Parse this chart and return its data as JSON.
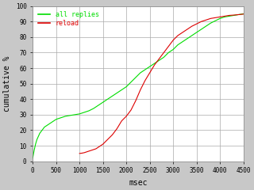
{
  "title": "",
  "xlabel": "msec",
  "ylabel": "cumulative %",
  "xlim": [
    0,
    4500
  ],
  "ylim": [
    0,
    100
  ],
  "xticks": [
    0,
    500,
    1000,
    1500,
    2000,
    2500,
    3000,
    3500,
    4000,
    4500
  ],
  "yticks": [
    0,
    10,
    20,
    30,
    40,
    50,
    60,
    70,
    80,
    90,
    100
  ],
  "fig_bg_color": "#c8c8c8",
  "plot_bg_color": "#ffffff",
  "grid_color": "#aaaaaa",
  "line_color_green": "#00dd00",
  "line_color_red": "#dd0000",
  "legend_labels": [
    "all replies",
    "reload"
  ],
  "legend_colors": [
    "#00dd00",
    "#dd0000"
  ],
  "font_family": "monospace",
  "all_replies_x": [
    0,
    30,
    60,
    90,
    120,
    150,
    200,
    250,
    300,
    350,
    400,
    450,
    500,
    600,
    700,
    800,
    900,
    1000,
    1100,
    1200,
    1300,
    1400,
    1500,
    1600,
    1700,
    1800,
    1900,
    2000,
    2100,
    2200,
    2300,
    2400,
    2500,
    2600,
    2700,
    2800,
    2900,
    3000,
    3100,
    3200,
    3300,
    3400,
    3500,
    3600,
    3700,
    3800,
    3900,
    4000,
    4100,
    4200,
    4300,
    4400,
    4500
  ],
  "all_replies_y": [
    2,
    7,
    11,
    14,
    16,
    18,
    20,
    22,
    23,
    24,
    25,
    26,
    27,
    28,
    29,
    29.5,
    30,
    30.5,
    31.5,
    32.5,
    34,
    36,
    38,
    40,
    42,
    44,
    46,
    48,
    51,
    54,
    57,
    59,
    61,
    63,
    65,
    67,
    70,
    72,
    75,
    77,
    79,
    81,
    83,
    85,
    87,
    89,
    90.5,
    92,
    93,
    93.5,
    94,
    94.5,
    95
  ],
  "reload_x": [
    1000,
    1050,
    1100,
    1150,
    1200,
    1250,
    1300,
    1350,
    1400,
    1500,
    1600,
    1700,
    1800,
    1900,
    2000,
    2100,
    2200,
    2300,
    2400,
    2500,
    2600,
    2700,
    2800,
    2900,
    3000,
    3100,
    3200,
    3300,
    3400,
    3500,
    3600,
    3700,
    3800,
    3900,
    4000,
    4100,
    4200,
    4300,
    4400,
    4500
  ],
  "reload_y": [
    5,
    5.2,
    5.5,
    6,
    6.5,
    7,
    7.5,
    8,
    9,
    11,
    14,
    17,
    21,
    26,
    29,
    33,
    39,
    46,
    52,
    57,
    62,
    66,
    70,
    74,
    78,
    81,
    83,
    85,
    87,
    88.5,
    90,
    91,
    92,
    92.5,
    93,
    93.5,
    94,
    94.2,
    94.5,
    94.8
  ]
}
